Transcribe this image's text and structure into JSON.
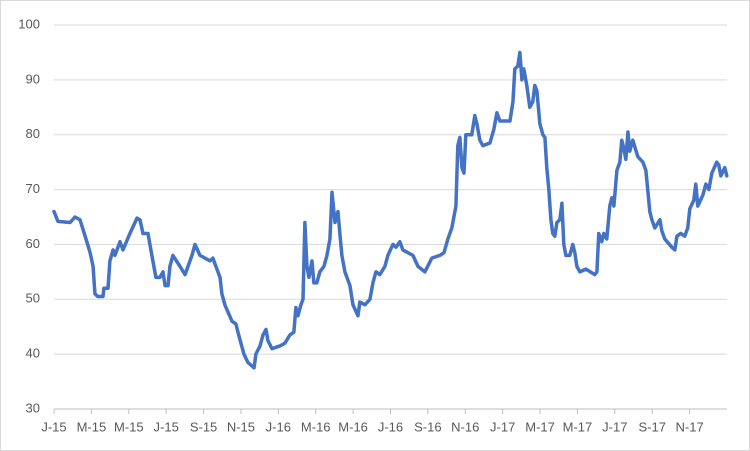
{
  "chart_data": {
    "type": "line",
    "color": "#4472c4",
    "grid": true,
    "x": [
      0.0,
      0.21,
      0.86,
      1.12,
      1.39,
      1.71,
      1.93,
      2.09,
      2.19,
      2.35,
      2.62,
      2.67,
      2.89,
      2.99,
      3.16,
      3.26,
      3.53,
      3.69,
      4.06,
      4.44,
      4.6,
      4.76,
      5.03,
      5.13,
      5.29,
      5.45,
      5.67,
      5.83,
      5.94,
      6.1,
      6.2,
      6.36,
      6.74,
      7.01,
      7.38,
      7.54,
      7.81,
      8.34,
      8.5,
      8.66,
      8.88,
      8.98,
      9.14,
      9.52,
      9.73,
      9.84,
      10.0,
      10.16,
      10.37,
      10.7,
      10.8,
      11.02,
      11.18,
      11.34,
      11.44,
      11.66,
      12.09,
      12.35,
      12.62,
      12.83,
      12.94,
      13.05,
      13.21,
      13.32,
      13.42,
      13.53,
      13.64,
      13.8,
      13.9,
      14.06,
      14.22,
      14.44,
      14.6,
      14.76,
      14.87,
      15.03,
      15.19,
      15.29,
      15.4,
      15.56,
      15.83,
      15.99,
      16.26,
      16.36,
      16.63,
      16.9,
      17.06,
      17.22,
      17.43,
      17.7,
      17.86,
      18.13,
      18.29,
      18.5,
      18.66,
      19.2,
      19.47,
      19.84,
      20.21,
      20.64,
      20.86,
      21.07,
      21.28,
      21.5,
      21.6,
      21.71,
      21.82,
      21.93,
      22.03,
      22.35,
      22.51,
      22.62,
      22.78,
      22.94,
      23.32,
      23.53,
      23.69,
      23.85,
      24.39,
      24.55,
      24.65,
      24.81,
      24.92,
      25.03,
      25.13,
      25.29,
      25.45,
      25.61,
      25.72,
      25.83,
      25.99,
      26.15,
      26.26,
      26.36,
      26.47,
      26.58,
      26.68,
      26.79,
      26.9,
      27.06,
      27.17,
      27.27,
      27.38,
      27.59,
      27.75,
      27.86,
      27.97,
      28.13,
      28.45,
      28.93,
      29.04,
      29.14,
      29.3,
      29.41,
      29.57,
      29.73,
      29.84,
      29.95,
      30.11,
      30.27,
      30.37,
      30.48,
      30.59,
      30.7,
      30.8,
      30.96,
      31.23,
      31.5,
      31.66,
      31.76,
      31.87,
      31.98,
      32.14,
      32.41,
      32.51,
      32.67,
      33.05,
      33.21,
      33.32,
      33.53,
      33.74,
      33.9,
      34.01,
      34.22,
      34.33,
      34.44,
      34.71,
      34.87,
      35.03,
      35.19,
      35.45,
      35.56,
      35.67,
      35.88,
      35.99
    ],
    "values": [
      66,
      64.2,
      64,
      65,
      64.5,
      61,
      58.5,
      56,
      51,
      50.5,
      50.5,
      52,
      52,
      57,
      59,
      58,
      60.5,
      59,
      62,
      64.8,
      64.5,
      62,
      62,
      60,
      57,
      54,
      54,
      55,
      52.5,
      52.5,
      56,
      58,
      56,
      54.5,
      58,
      60,
      58,
      57,
      57.5,
      56,
      54,
      51,
      49,
      46,
      45.5,
      44,
      42,
      40,
      38.5,
      37.5,
      40,
      41.5,
      43.5,
      44.5,
      42.5,
      41,
      41.5,
      42,
      43.5,
      44,
      48.5,
      47,
      49,
      50,
      64,
      56,
      54,
      57,
      53,
      53,
      55,
      56,
      58,
      61,
      69.5,
      64,
      66,
      62,
      58,
      55,
      52.5,
      49,
      47,
      49.5,
      49,
      50,
      53,
      55,
      54.5,
      56,
      58,
      60,
      59.5,
      60.5,
      59,
      58,
      56,
      55,
      57.5,
      58,
      58.5,
      61,
      63,
      67,
      78,
      79.5,
      74,
      73,
      80,
      80,
      83.5,
      82,
      79,
      78,
      78.5,
      81,
      84,
      82.5,
      82.5,
      86,
      92,
      92.5,
      95,
      90,
      92,
      89,
      85,
      86,
      89,
      88,
      82,
      80,
      79.5,
      74,
      70,
      64.5,
      62,
      61.5,
      64,
      64.5,
      67.5,
      60,
      58,
      58,
      60,
      58.5,
      56,
      55,
      55.5,
      54.5,
      55,
      62,
      60.5,
      62,
      61,
      67,
      68.5,
      67,
      73.5,
      75,
      79,
      77.5,
      75.5,
      80.5,
      77,
      79,
      76,
      75,
      73.5,
      70,
      66,
      64.5,
      63,
      64.5,
      62.5,
      61,
      59.5,
      59,
      61.5,
      62,
      61.5,
      63,
      66.5,
      68,
      71,
      67,
      69,
      71,
      70,
      73,
      75,
      74.5,
      72.5,
      74,
      72.5
    ],
    "xlim": [
      0,
      36
    ],
    "xticks": [
      {
        "value": 0,
        "label": "J-15"
      },
      {
        "value": 2,
        "label": "M-15"
      },
      {
        "value": 4,
        "label": "M-15"
      },
      {
        "value": 6,
        "label": "J-15"
      },
      {
        "value": 8,
        "label": "S-15"
      },
      {
        "value": 10,
        "label": "N-15"
      },
      {
        "value": 12,
        "label": "J-16"
      },
      {
        "value": 14,
        "label": "M-16"
      },
      {
        "value": 16,
        "label": "M-16"
      },
      {
        "value": 18,
        "label": "J-16"
      },
      {
        "value": 20,
        "label": "S-16"
      },
      {
        "value": 22,
        "label": "N-16"
      },
      {
        "value": 24,
        "label": "J-17"
      },
      {
        "value": 26,
        "label": "M-17"
      },
      {
        "value": 28,
        "label": "M-17"
      },
      {
        "value": 30,
        "label": "J-17"
      },
      {
        "value": 32,
        "label": "S-17"
      },
      {
        "value": 34,
        "label": "N-17"
      }
    ],
    "ylim": [
      30,
      100
    ],
    "yticks": [
      30,
      40,
      50,
      60,
      70,
      80,
      90,
      100
    ]
  }
}
